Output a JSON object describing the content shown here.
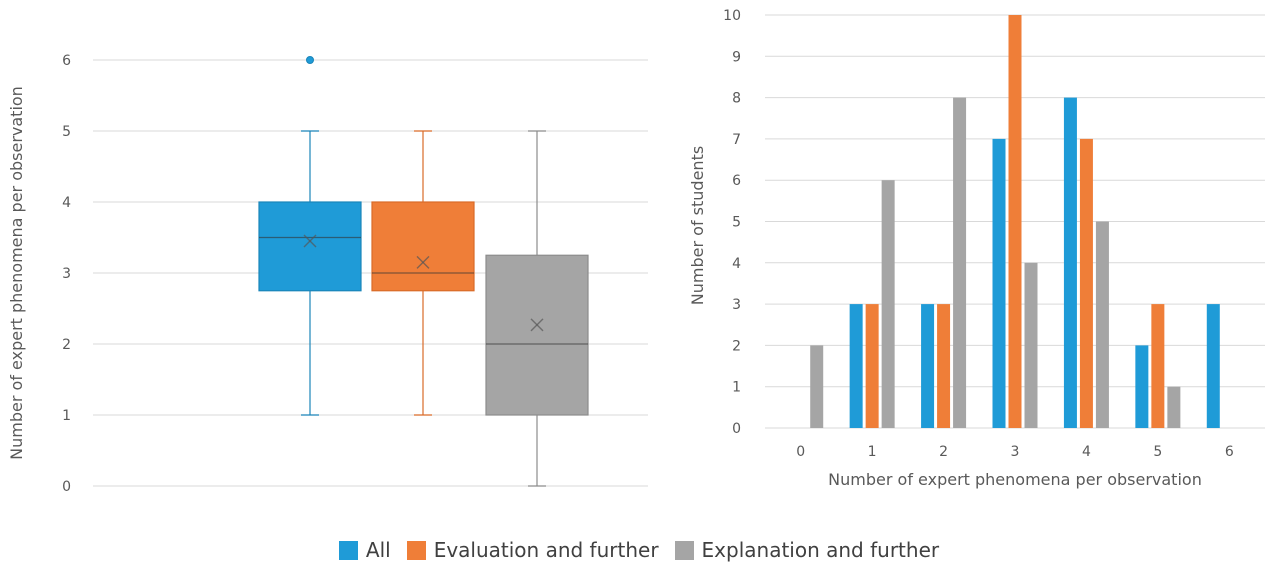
{
  "colors": {
    "all": "#1f9bd7",
    "evaluation": "#ef7e38",
    "explanation": "#a5a5a5"
  },
  "legend": [
    {
      "label": "All",
      "color": "#1f9bd7"
    },
    {
      "label": "Evaluation and further",
      "color": "#ef7e38"
    },
    {
      "label": "Explanation and further",
      "color": "#a5a5a5"
    }
  ],
  "chart_data": [
    {
      "type": "boxplot",
      "ylabel": "Number of expert phenomena per observation",
      "ylim": [
        0,
        6
      ],
      "yticks": [
        "0",
        "1",
        "2",
        "3",
        "4",
        "5",
        "6"
      ],
      "grid": true,
      "series": [
        {
          "name": "All",
          "min": 1,
          "q1": 2.75,
          "median": 3.5,
          "q3": 4,
          "max": 5,
          "mean": 3.45,
          "outliers": [
            6
          ]
        },
        {
          "name": "Evaluation and further",
          "min": 1,
          "q1": 2.75,
          "median": 3,
          "q3": 4,
          "max": 5,
          "mean": 3.15,
          "outliers": []
        },
        {
          "name": "Explanation and further",
          "min": 0,
          "q1": 1,
          "median": 2,
          "q3": 3.25,
          "max": 5,
          "mean": 2.27,
          "outliers": []
        }
      ]
    },
    {
      "type": "bar",
      "xlabel": "Number of expert phenomena per observation",
      "ylabel": "Number of students",
      "categories": [
        "0",
        "1",
        "2",
        "3",
        "4",
        "5",
        "6"
      ],
      "yticks": [
        "0",
        "1",
        "2",
        "3",
        "4",
        "5",
        "6",
        "7",
        "8",
        "9",
        "10"
      ],
      "ylim": [
        0,
        10
      ],
      "grid": true,
      "series": [
        {
          "name": "All",
          "values": [
            0,
            3,
            3,
            7,
            8,
            2,
            3
          ]
        },
        {
          "name": "Evaluation and further",
          "values": [
            0,
            3,
            3,
            10,
            7,
            3,
            0
          ]
        },
        {
          "name": "Explanation and further",
          "values": [
            2,
            6,
            8,
            4,
            5,
            1,
            0
          ]
        }
      ]
    }
  ]
}
